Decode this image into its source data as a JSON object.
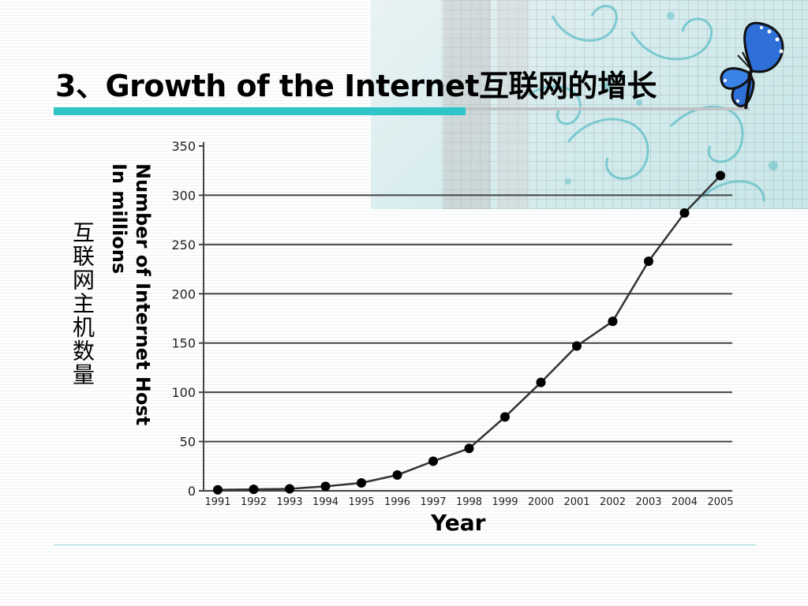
{
  "slide": {
    "title": "3、Growth of the Internet互联网的增长",
    "ylabel_cn": "互联网主机数量",
    "ylabel_en_line1": "Number of Internet Host",
    "ylabel_en_line2": "In millions",
    "xlabel": "Year"
  },
  "colors": {
    "accent_teal": "#2fc5c7",
    "butterfly_blue": "#2f6fd8",
    "line": "#333333",
    "grid": "#444444"
  },
  "chart_data": {
    "type": "line",
    "x": [
      "1991",
      "1992",
      "1993",
      "1994",
      "1995",
      "1996",
      "1997",
      "1998",
      "1999",
      "2000",
      "2001",
      "2002",
      "2003",
      "2004",
      "2005"
    ],
    "series": [
      {
        "values": [
          1,
          1.5,
          2,
          4.5,
          8,
          16,
          30,
          43,
          75,
          110,
          147,
          172,
          233,
          282,
          320
        ]
      }
    ],
    "yticks": [
      0,
      50,
      100,
      150,
      200,
      250,
      300,
      350
    ],
    "ylim": [
      0,
      350
    ],
    "title": "",
    "xlabel": "Year",
    "ylabel": "Number of Internet Host In millions",
    "grid": true
  }
}
